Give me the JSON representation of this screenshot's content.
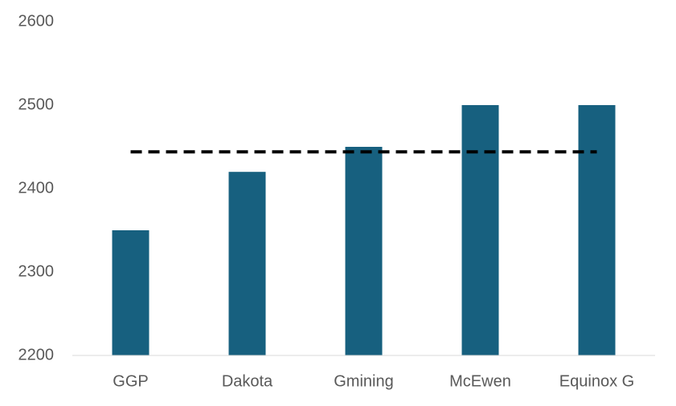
{
  "chart_data": {
    "type": "bar",
    "categories": [
      "GGP",
      "Dakota",
      "Gmining",
      "McEwen",
      "Equinox G"
    ],
    "values": [
      2350,
      2420,
      2450,
      2500,
      2500
    ],
    "color": "#17607f",
    "reference_line": 2444,
    "reference_color": "#000000",
    "ylim": [
      2200,
      2600
    ],
    "yticks": [
      2200,
      2300,
      2400,
      2500,
      2600
    ],
    "grid": false
  }
}
